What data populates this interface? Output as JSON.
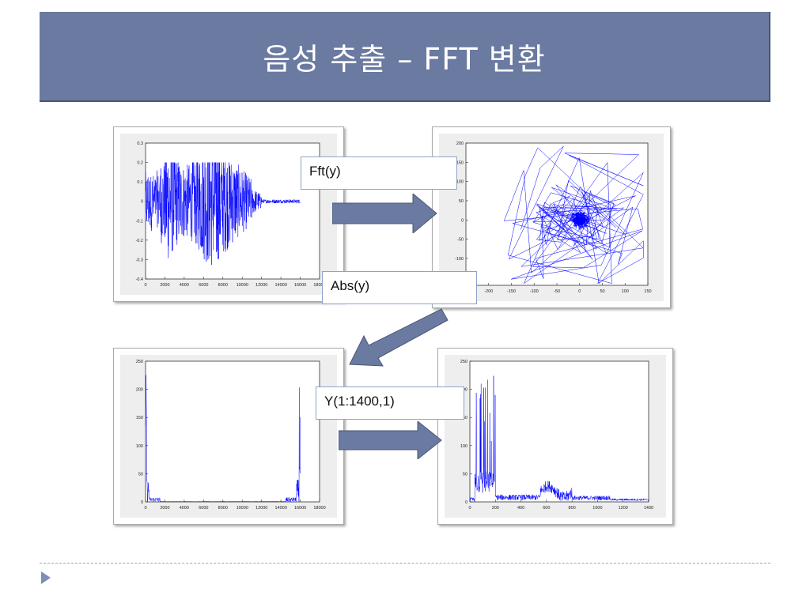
{
  "title": "음성 추출 – FFT 변환",
  "steps": {
    "fft": "Fft(y)",
    "abs": "Abs(y)",
    "slice": "Y(1:1400,1)"
  },
  "colors": {
    "title_bg": "#6b7aa0",
    "arrow": "#6b7aa0",
    "plot_line": "#0000ff"
  },
  "chart_data": [
    {
      "type": "line",
      "x_ticks": [
        "0",
        "2000",
        "4000",
        "6000",
        "8000",
        "10000",
        "12000",
        "14000",
        "16000",
        "18000"
      ],
      "y_ticks": [
        "-0.4",
        "-0.3",
        "-0.2",
        "-0.1",
        "0",
        "0.1",
        "0.2",
        "0.3"
      ],
      "xlim": [
        0,
        18000
      ],
      "ylim": [
        -0.4,
        0.3
      ],
      "description_series": "waveform y"
    },
    {
      "type": "line",
      "x_ticks": [
        "-200",
        "-150",
        "-100",
        "-50",
        "0",
        "50",
        "100",
        "150"
      ],
      "y_ticks": [
        "-150",
        "-100",
        "-50",
        "0",
        "50",
        "100",
        "150",
        "200"
      ],
      "xlim": [
        -250,
        150
      ],
      "ylim": [
        -170,
        200
      ]
    },
    {
      "type": "line",
      "x_ticks": [
        "0",
        "2000",
        "4000",
        "6000",
        "8000",
        "10000",
        "12000",
        "14000",
        "16000",
        "18000"
      ],
      "y_ticks": [
        "0",
        "50",
        "100",
        "150",
        "200",
        "250"
      ],
      "xlim": [
        0,
        18000
      ],
      "ylim": [
        0,
        250
      ]
    },
    {
      "type": "line",
      "x_ticks": [
        "0",
        "200",
        "400",
        "600",
        "800",
        "1000",
        "1200",
        "1400"
      ],
      "y_ticks": [
        "0",
        "50",
        "100",
        "150",
        "200",
        "250"
      ],
      "xlim": [
        0,
        1400
      ],
      "ylim": [
        0,
        250
      ]
    }
  ]
}
